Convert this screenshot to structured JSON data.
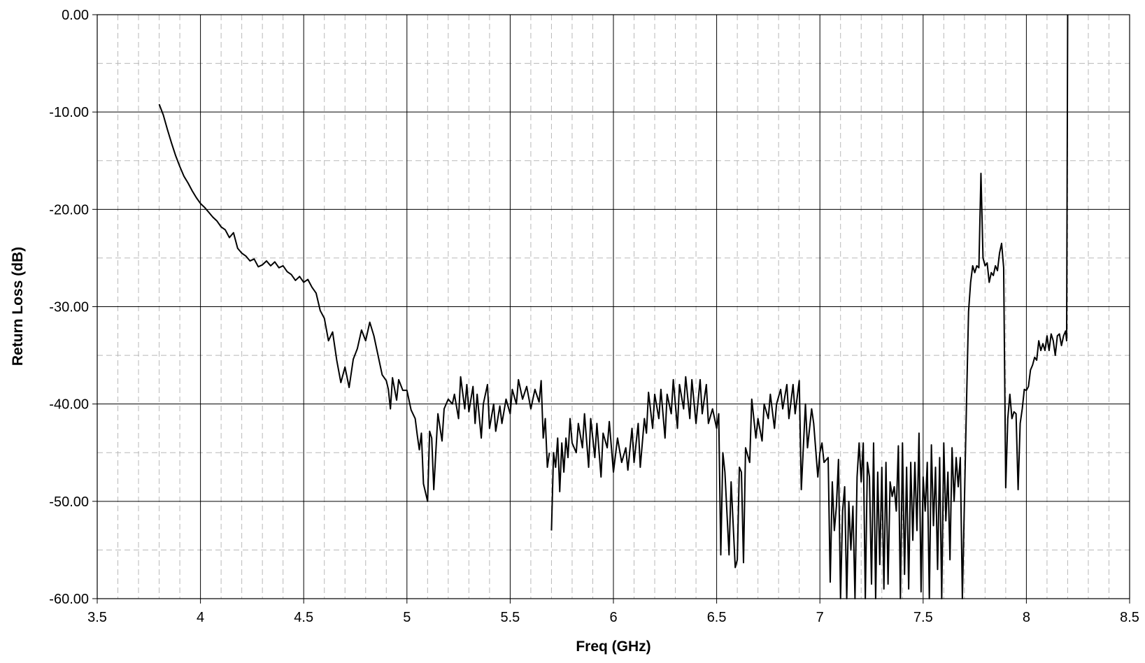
{
  "chart_data": {
    "type": "line",
    "x_label": "Freq (GHz)",
    "y_label": "Return Loss (dB)",
    "xlim": [
      3.5,
      8.5
    ],
    "xticks": [
      3.5,
      4,
      4.5,
      5,
      5.5,
      6,
      6.5,
      7,
      7.5,
      8,
      8.5
    ],
    "ylim": [
      -60,
      0
    ],
    "yticks": [
      {
        "value": -60,
        "label": "-60.00"
      },
      {
        "value": -50,
        "label": "-50.00"
      },
      {
        "value": -40,
        "label": "-40.00"
      },
      {
        "value": -30,
        "label": "-30.00"
      },
      {
        "value": -20,
        "label": "-20.00"
      },
      {
        "value": -10,
        "label": "-10.00"
      },
      {
        "value": 0,
        "label": "0.00"
      }
    ],
    "grid": true,
    "minor_grid": {
      "x_divisions": 5,
      "y_divisions": 2
    },
    "series": [
      {
        "color": "#000000",
        "x": [
          3.8,
          3.82,
          3.84,
          3.86,
          3.88,
          3.9,
          3.92,
          3.94,
          3.96,
          3.98,
          4.0,
          4.02,
          4.04,
          4.06,
          4.08,
          4.1,
          4.12,
          4.14,
          4.16,
          4.18,
          4.2,
          4.22,
          4.24,
          4.26,
          4.28,
          4.3,
          4.32,
          4.34,
          4.36,
          4.38,
          4.4,
          4.42,
          4.44,
          4.46,
          4.48,
          4.5,
          4.52,
          4.54,
          4.56,
          4.58,
          4.6,
          4.62,
          4.64,
          4.66,
          4.68,
          4.7,
          4.72,
          4.74,
          4.76,
          4.78,
          4.8,
          4.82,
          4.84,
          4.86,
          4.88,
          4.9,
          4.91,
          4.92,
          4.93,
          4.95,
          4.96,
          4.98,
          5.0,
          5.02,
          5.04,
          5.05,
          5.06,
          5.07,
          5.08,
          5.1,
          5.11,
          5.12,
          5.13,
          5.15,
          5.17,
          5.18,
          5.2,
          5.22,
          5.23,
          5.25,
          5.26,
          5.28,
          5.29,
          5.3,
          5.32,
          5.33,
          5.34,
          5.36,
          5.37,
          5.39,
          5.4,
          5.42,
          5.43,
          5.45,
          5.46,
          5.48,
          5.5,
          5.51,
          5.53,
          5.54,
          5.56,
          5.58,
          5.6,
          5.62,
          5.64,
          5.65,
          5.66,
          5.67,
          5.68,
          5.69,
          5.695,
          5.7,
          5.71,
          5.72,
          5.73,
          5.74,
          5.75,
          5.76,
          5.77,
          5.78,
          5.79,
          5.8,
          5.82,
          5.83,
          5.85,
          5.86,
          5.88,
          5.89,
          5.91,
          5.92,
          5.94,
          5.95,
          5.97,
          5.98,
          6.0,
          6.02,
          6.04,
          6.06,
          6.07,
          6.09,
          6.1,
          6.12,
          6.13,
          6.15,
          6.16,
          6.17,
          6.19,
          6.2,
          6.22,
          6.23,
          6.25,
          6.26,
          6.28,
          6.29,
          6.31,
          6.32,
          6.34,
          6.35,
          6.37,
          6.38,
          6.4,
          6.42,
          6.43,
          6.45,
          6.46,
          6.48,
          6.5,
          6.51,
          6.52,
          6.53,
          6.54,
          6.56,
          6.57,
          6.59,
          6.6,
          6.61,
          6.62,
          6.63,
          6.64,
          6.66,
          6.67,
          6.69,
          6.7,
          6.72,
          6.73,
          6.75,
          6.76,
          6.78,
          6.79,
          6.81,
          6.82,
          6.84,
          6.85,
          6.87,
          6.88,
          6.9,
          6.91,
          6.93,
          6.94,
          6.96,
          6.97,
          6.99,
          7.0,
          7.01,
          7.02,
          7.04,
          7.05,
          7.06,
          7.07,
          7.08,
          7.09,
          7.1,
          7.11,
          7.12,
          7.13,
          7.14,
          7.15,
          7.16,
          7.17,
          7.18,
          7.19,
          7.2,
          7.21,
          7.22,
          7.23,
          7.24,
          7.25,
          7.26,
          7.27,
          7.28,
          7.29,
          7.3,
          7.31,
          7.32,
          7.33,
          7.34,
          7.35,
          7.36,
          7.37,
          7.38,
          7.39,
          7.4,
          7.41,
          7.42,
          7.43,
          7.44,
          7.45,
          7.46,
          7.47,
          7.48,
          7.49,
          7.5,
          7.51,
          7.52,
          7.53,
          7.54,
          7.55,
          7.56,
          7.57,
          7.58,
          7.59,
          7.6,
          7.61,
          7.62,
          7.63,
          7.64,
          7.65,
          7.66,
          7.67,
          7.68,
          7.69,
          7.71,
          7.72,
          7.73,
          7.74,
          7.75,
          7.76,
          7.77,
          7.78,
          7.79,
          7.8,
          7.81,
          7.82,
          7.83,
          7.84,
          7.85,
          7.86,
          7.87,
          7.88,
          7.89,
          7.9,
          7.91,
          7.92,
          7.93,
          7.94,
          7.95,
          7.96,
          7.97,
          7.98,
          7.99,
          8.0,
          8.01,
          8.02,
          8.03,
          8.04,
          8.05,
          8.06,
          8.07,
          8.08,
          8.09,
          8.1,
          8.11,
          8.12,
          8.13,
          8.14,
          8.15,
          8.16,
          8.17,
          8.18,
          8.19,
          8.195,
          8.2
        ],
        "values": [
          -9.2,
          -10.3,
          -11.8,
          -13.2,
          -14.5,
          -15.6,
          -16.6,
          -17.3,
          -18.1,
          -18.8,
          -19.4,
          -19.8,
          -20.3,
          -20.8,
          -21.2,
          -21.8,
          -22.1,
          -22.9,
          -22.4,
          -24.0,
          -24.5,
          -24.8,
          -25.3,
          -25.1,
          -25.9,
          -25.7,
          -25.3,
          -25.8,
          -25.4,
          -26.0,
          -25.8,
          -26.4,
          -26.7,
          -27.3,
          -26.9,
          -27.5,
          -27.2,
          -28.0,
          -28.6,
          -30.4,
          -31.2,
          -33.5,
          -32.6,
          -35.5,
          -37.8,
          -36.2,
          -38.3,
          -35.4,
          -34.3,
          -32.4,
          -33.5,
          -31.6,
          -33.0,
          -35.0,
          -37.0,
          -37.6,
          -38.5,
          -40.5,
          -37.3,
          -39.6,
          -37.5,
          -38.6,
          -38.6,
          -40.6,
          -41.5,
          -43.2,
          -44.7,
          -43.0,
          -48.2,
          -50.0,
          -42.8,
          -43.5,
          -48.8,
          -41.0,
          -43.8,
          -40.5,
          -39.5,
          -40.0,
          -39.0,
          -41.5,
          -37.2,
          -40.5,
          -38.0,
          -40.8,
          -38.2,
          -42.0,
          -39.0,
          -43.5,
          -40.0,
          -38.0,
          -42.5,
          -40.0,
          -42.8,
          -40.2,
          -42.0,
          -39.5,
          -41.0,
          -38.5,
          -40.0,
          -37.5,
          -39.5,
          -38.2,
          -40.5,
          -38.5,
          -39.8,
          -37.6,
          -43.5,
          -41.5,
          -46.5,
          -45.0,
          null,
          -53.0,
          -45.0,
          -46.5,
          -43.5,
          -49.0,
          -44.0,
          -47.0,
          -43.5,
          -45.5,
          -41.5,
          -44.0,
          -45.0,
          -42.0,
          -44.5,
          -41.0,
          -46.5,
          -41.5,
          -45.5,
          -42.0,
          -47.5,
          -43.0,
          -44.5,
          -41.8,
          -47.0,
          -43.5,
          -46.0,
          -44.5,
          -46.8,
          -42.5,
          -46.0,
          -42.0,
          -46.5,
          -41.5,
          -43.0,
          -38.8,
          -42.5,
          -39.0,
          -41.5,
          -38.5,
          -43.5,
          -39.0,
          -41.0,
          -37.5,
          -42.5,
          -38.0,
          -40.5,
          -37.2,
          -41.5,
          -37.5,
          -42.0,
          -37.5,
          -41.0,
          -38.0,
          -42.0,
          -40.5,
          -42.5,
          -41.0,
          -55.5,
          -45.0,
          -47.0,
          -55.5,
          -48.0,
          -56.8,
          -56.0,
          -46.5,
          -47.0,
          -56.3,
          -44.5,
          -46.0,
          -39.5,
          -43.5,
          -41.5,
          -43.8,
          -40.0,
          -41.5,
          -39.0,
          -42.5,
          -40.0,
          -38.5,
          -40.5,
          -38.0,
          -41.5,
          -38.0,
          -41.0,
          -37.6,
          -48.8,
          -40.0,
          -44.5,
          -40.5,
          -42.0,
          -47.5,
          -45.0,
          -44.0,
          -46.0,
          -45.5,
          -58.3,
          -48.0,
          -53.0,
          -50.5,
          -45.7,
          -60.0,
          -51.0,
          -48.5,
          -60.0,
          -50.0,
          -55.0,
          -50.5,
          -60.0,
          -47.5,
          -44.0,
          -48.0,
          -44.0,
          -60.0,
          -46.0,
          -47.5,
          -58.5,
          -44.0,
          -60.0,
          -47.0,
          -56.5,
          -46.5,
          -59.0,
          -46.0,
          -58.5,
          -48.0,
          -49.5,
          -48.5,
          -51.0,
          -44.3,
          -60.0,
          -44.0,
          -57.5,
          -46.5,
          -59.0,
          -46.0,
          -54.0,
          -46.0,
          -53.0,
          -43.0,
          -59.3,
          -47.5,
          -51.0,
          -46.0,
          -60.0,
          -44.2,
          -52.5,
          -46.5,
          -57.0,
          -45.5,
          -60.0,
          -44.0,
          -52.0,
          -47.0,
          -56.0,
          -44.5,
          -50.0,
          -45.5,
          -48.5,
          -45.5,
          -60.0,
          -40.0,
          -30.5,
          -27.5,
          -25.8,
          -26.5,
          -25.8,
          -26.0,
          -16.3,
          -25.0,
          -25.8,
          -25.5,
          -27.5,
          -26.5,
          -26.8,
          -25.8,
          -26.3,
          -24.5,
          -23.5,
          -26.0,
          -48.6,
          -41.5,
          -39.0,
          -41.5,
          -40.8,
          -41.0,
          -48.8,
          -42.0,
          -40.5,
          -38.5,
          -38.6,
          -38.2,
          -36.5,
          -36.0,
          -35.2,
          -35.5,
          -33.5,
          -34.5,
          -33.8,
          -34.5,
          -33.0,
          -34.5,
          -32.8,
          -33.5,
          -35.0,
          -33.0,
          -32.8,
          -34.0,
          -33.0,
          -32.5,
          -33.5,
          0.0
        ]
      }
    ]
  }
}
